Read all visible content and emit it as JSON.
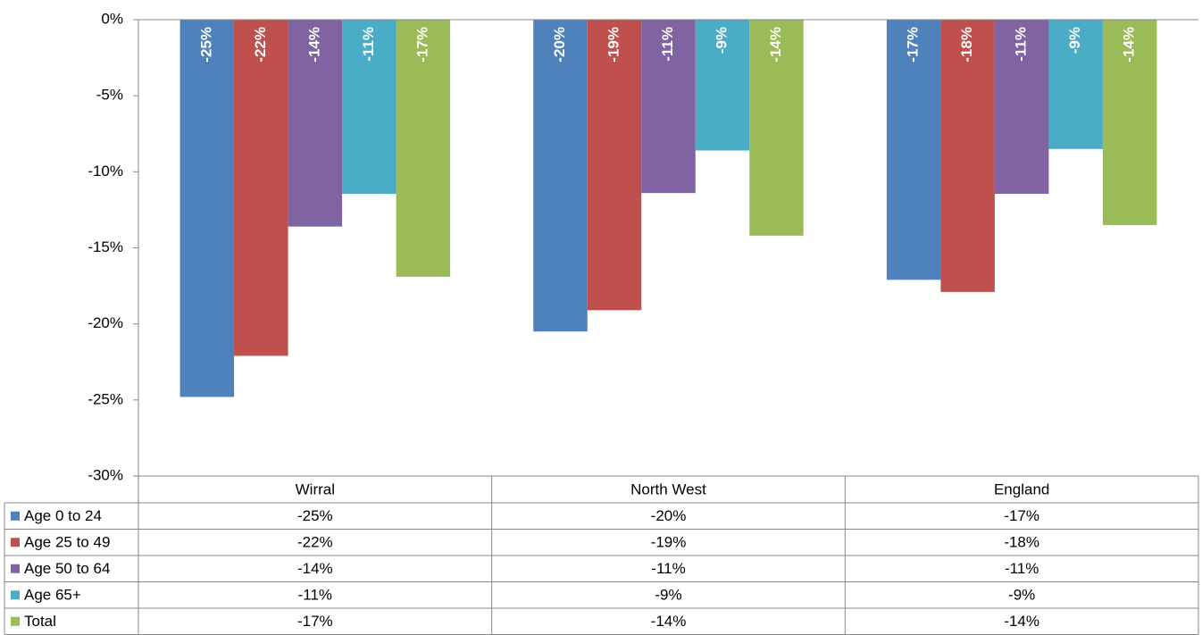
{
  "chart_data": {
    "type": "bar",
    "categories": [
      "Wirral",
      "North West",
      "England"
    ],
    "series": [
      {
        "name": "Age 0 to 24",
        "color": "#4f81bd",
        "values": [
          -24.8,
          -20.5,
          -17.1
        ],
        "value_labels": [
          "-25%",
          "-20%",
          "-17%"
        ]
      },
      {
        "name": "Age 25 to 49",
        "color": "#c0504d",
        "values": [
          -22.1,
          -19.1,
          -17.9
        ],
        "value_labels": [
          "-22%",
          "-19%",
          "-18%"
        ]
      },
      {
        "name": "Age 50 to 64",
        "color": "#8064a2",
        "values": [
          -13.6,
          -11.4,
          -11.45
        ],
        "value_labels": [
          "-14%",
          "-11%",
          "-11%"
        ]
      },
      {
        "name": "Age 65+",
        "color": "#4bacc6",
        "values": [
          -11.45,
          -8.6,
          -8.5
        ],
        "value_labels": [
          "-11%",
          "-9%",
          "-9%"
        ]
      },
      {
        "name": "Total",
        "color": "#9bbb59",
        "values": [
          -16.9,
          -14.2,
          -13.5
        ],
        "value_labels": [
          "-17%",
          "-14%",
          "-14%"
        ]
      }
    ],
    "ylim": [
      -30,
      0
    ],
    "yticks": [
      {
        "value": 0,
        "label": "0%"
      },
      {
        "value": -5,
        "label": "-5%"
      },
      {
        "value": -10,
        "label": "-10%"
      },
      {
        "value": -15,
        "label": "-15%"
      },
      {
        "value": -20,
        "label": "-20%"
      },
      {
        "value": -25,
        "label": "-25%"
      },
      {
        "value": -30,
        "label": "-30%"
      }
    ]
  }
}
